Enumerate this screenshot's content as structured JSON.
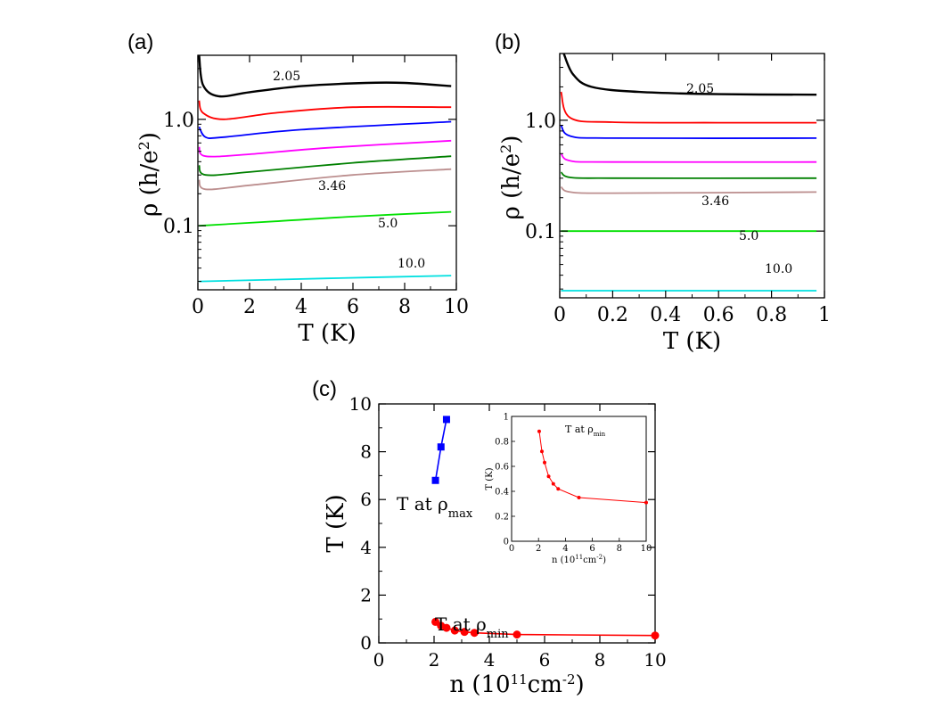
{
  "chart_data": [
    {
      "id": "a",
      "type": "line",
      "panel_label": "(a)",
      "xlabel": "T (K)",
      "ylabel_symbol": "ρ",
      "ylabel_units": "(h/e",
      "ylabel_sup": "2",
      "ylabel_close": ")",
      "xlim": [
        0,
        10
      ],
      "ylim": [
        0.025,
        4.0
      ],
      "yscale": "log",
      "xticks": [
        "0",
        "2",
        "4",
        "6",
        "8",
        "10"
      ],
      "yticks": [
        "0.1",
        "1.0"
      ],
      "series": [
        {
          "name": "2.05",
          "color": "#000000",
          "points": [
            [
              0.05,
              4.0
            ],
            [
              0.2,
              2.1
            ],
            [
              0.8,
              1.65
            ],
            [
              2,
              1.8
            ],
            [
              4,
              2.05
            ],
            [
              6.5,
              2.2
            ],
            [
              8,
              2.2
            ],
            [
              9.8,
              2.05
            ]
          ]
        },
        {
          "name": "",
          "color": "#ff0000",
          "points": [
            [
              0.05,
              1.5
            ],
            [
              0.2,
              1.15
            ],
            [
              1,
              1.0
            ],
            [
              3,
              1.15
            ],
            [
              6,
              1.3
            ],
            [
              9.8,
              1.3
            ]
          ]
        },
        {
          "name": "",
          "color": "#0000ff",
          "points": [
            [
              0.05,
              0.85
            ],
            [
              0.3,
              0.68
            ],
            [
              1,
              0.68
            ],
            [
              4,
              0.8
            ],
            [
              9.8,
              0.95
            ]
          ]
        },
        {
          "name": "",
          "color": "#ff00ff",
          "points": [
            [
              0.05,
              0.55
            ],
            [
              0.3,
              0.45
            ],
            [
              2,
              0.47
            ],
            [
              5,
              0.54
            ],
            [
              9.8,
              0.63
            ]
          ]
        },
        {
          "name": "",
          "color": "#008000",
          "points": [
            [
              0.05,
              0.37
            ],
            [
              0.3,
              0.3
            ],
            [
              2,
              0.32
            ],
            [
              6,
              0.39
            ],
            [
              9.8,
              0.45
            ]
          ]
        },
        {
          "name": "3.46",
          "color": "#bc8f8f",
          "points": [
            [
              0.05,
              0.27
            ],
            [
              0.3,
              0.22
            ],
            [
              2,
              0.24
            ],
            [
              6,
              0.3
            ],
            [
              9.8,
              0.34
            ]
          ]
        },
        {
          "name": "5.0",
          "color": "#00e000",
          "points": [
            [
              0.05,
              0.1
            ],
            [
              3,
              0.11
            ],
            [
              6,
              0.122
            ],
            [
              9.8,
              0.135
            ]
          ]
        },
        {
          "name": "10.0",
          "color": "#00e0e0",
          "points": [
            [
              0.05,
              0.03
            ],
            [
              5,
              0.032
            ],
            [
              9.8,
              0.034
            ]
          ]
        }
      ]
    },
    {
      "id": "b",
      "type": "line",
      "panel_label": "(b)",
      "xlabel": "T (K)",
      "ylabel_symbol": "ρ",
      "ylabel_units": "(h/e",
      "ylabel_sup": "2",
      "ylabel_close": ")",
      "xlim": [
        0,
        1
      ],
      "ylim": [
        0.025,
        4.0
      ],
      "yscale": "log",
      "xticks": [
        "0",
        "0.2",
        "0.4",
        "0.6",
        "0.8",
        "1"
      ],
      "yticks": [
        "0.1",
        "1.0"
      ],
      "series": [
        {
          "name": "2.05",
          "color": "#000000",
          "points": [
            [
              0.015,
              4.0
            ],
            [
              0.05,
              2.6
            ],
            [
              0.12,
              2.0
            ],
            [
              0.3,
              1.8
            ],
            [
              0.6,
              1.72
            ],
            [
              0.97,
              1.7
            ]
          ]
        },
        {
          "name": "",
          "color": "#ff0000",
          "points": [
            [
              0.005,
              1.8
            ],
            [
              0.04,
              1.05
            ],
            [
              0.2,
              0.96
            ],
            [
              0.6,
              0.95
            ],
            [
              0.97,
              0.95
            ]
          ]
        },
        {
          "name": "",
          "color": "#0000ff",
          "points": [
            [
              0.005,
              0.9
            ],
            [
              0.04,
              0.72
            ],
            [
              0.2,
              0.69
            ],
            [
              0.97,
              0.69
            ]
          ]
        },
        {
          "name": "",
          "color": "#ff00ff",
          "points": [
            [
              0.005,
              0.5
            ],
            [
              0.04,
              0.43
            ],
            [
              0.2,
              0.42
            ],
            [
              0.97,
              0.42
            ]
          ]
        },
        {
          "name": "",
          "color": "#008000",
          "points": [
            [
              0.005,
              0.34
            ],
            [
              0.04,
              0.305
            ],
            [
              0.2,
              0.3
            ],
            [
              0.97,
              0.3
            ]
          ]
        },
        {
          "name": "3.46",
          "color": "#bc8f8f",
          "points": [
            [
              0.005,
              0.25
            ],
            [
              0.04,
              0.225
            ],
            [
              0.2,
              0.22
            ],
            [
              0.97,
              0.225
            ]
          ]
        },
        {
          "name": "5.0",
          "color": "#00e000",
          "points": [
            [
              0.005,
              0.1
            ],
            [
              0.97,
              0.1
            ]
          ]
        },
        {
          "name": "10.0",
          "color": "#00e0e0",
          "points": [
            [
              0.005,
              0.029
            ],
            [
              0.97,
              0.029
            ]
          ]
        }
      ]
    },
    {
      "id": "c",
      "type": "scatter",
      "panel_label": "(c)",
      "xlabel": "n (10",
      "xlabel_sup": "11",
      "xlabel_rest": "cm",
      "xlabel_sup2": "-2",
      "xlabel_close": ")",
      "ylabel": "T (K)",
      "xlim": [
        0,
        10
      ],
      "ylim": [
        0,
        10
      ],
      "xticks": [
        "0",
        "2",
        "4",
        "6",
        "8",
        "10"
      ],
      "yticks": [
        "0",
        "2",
        "4",
        "6",
        "8",
        "10"
      ],
      "series": [
        {
          "name": "T at ρmax",
          "label_main": "T at  ρ",
          "label_sub": "max",
          "color": "#0000ff",
          "marker": "square",
          "points": [
            [
              2.05,
              6.8
            ],
            [
              2.25,
              8.2
            ],
            [
              2.45,
              9.35
            ]
          ]
        },
        {
          "name": "T at ρmin",
          "label_main": "T at  ρ",
          "label_sub": "min",
          "color": "#ff0000",
          "marker": "circle",
          "points": [
            [
              2.05,
              0.88
            ],
            [
              2.25,
              0.72
            ],
            [
              2.45,
              0.63
            ],
            [
              2.75,
              0.52
            ],
            [
              3.1,
              0.46
            ],
            [
              3.46,
              0.42
            ],
            [
              5.0,
              0.35
            ],
            [
              10.0,
              0.31
            ]
          ]
        }
      ]
    },
    {
      "id": "c-inset",
      "type": "scatter",
      "title_main": "T at  ρ",
      "title_sub": "min",
      "xlabel": "n (10",
      "xlabel_sup": "11",
      "xlabel_rest": "cm",
      "xlabel_sup2": "-2",
      "xlabel_close": ")",
      "ylabel": "T (K)",
      "xlim": [
        0,
        10
      ],
      "ylim": [
        0,
        1
      ],
      "xticks": [
        "0",
        "2",
        "4",
        "6",
        "8",
        "10"
      ],
      "yticks": [
        "0",
        "0.2",
        "0.4",
        "0.6",
        "0.8",
        "1"
      ],
      "series": [
        {
          "name": "T at ρmin",
          "color": "#ff0000",
          "marker": "circle",
          "points": [
            [
              2.05,
              0.88
            ],
            [
              2.25,
              0.72
            ],
            [
              2.45,
              0.63
            ],
            [
              2.75,
              0.52
            ],
            [
              3.1,
              0.46
            ],
            [
              3.46,
              0.42
            ],
            [
              5.0,
              0.35
            ],
            [
              10.0,
              0.31
            ]
          ]
        }
      ]
    }
  ]
}
